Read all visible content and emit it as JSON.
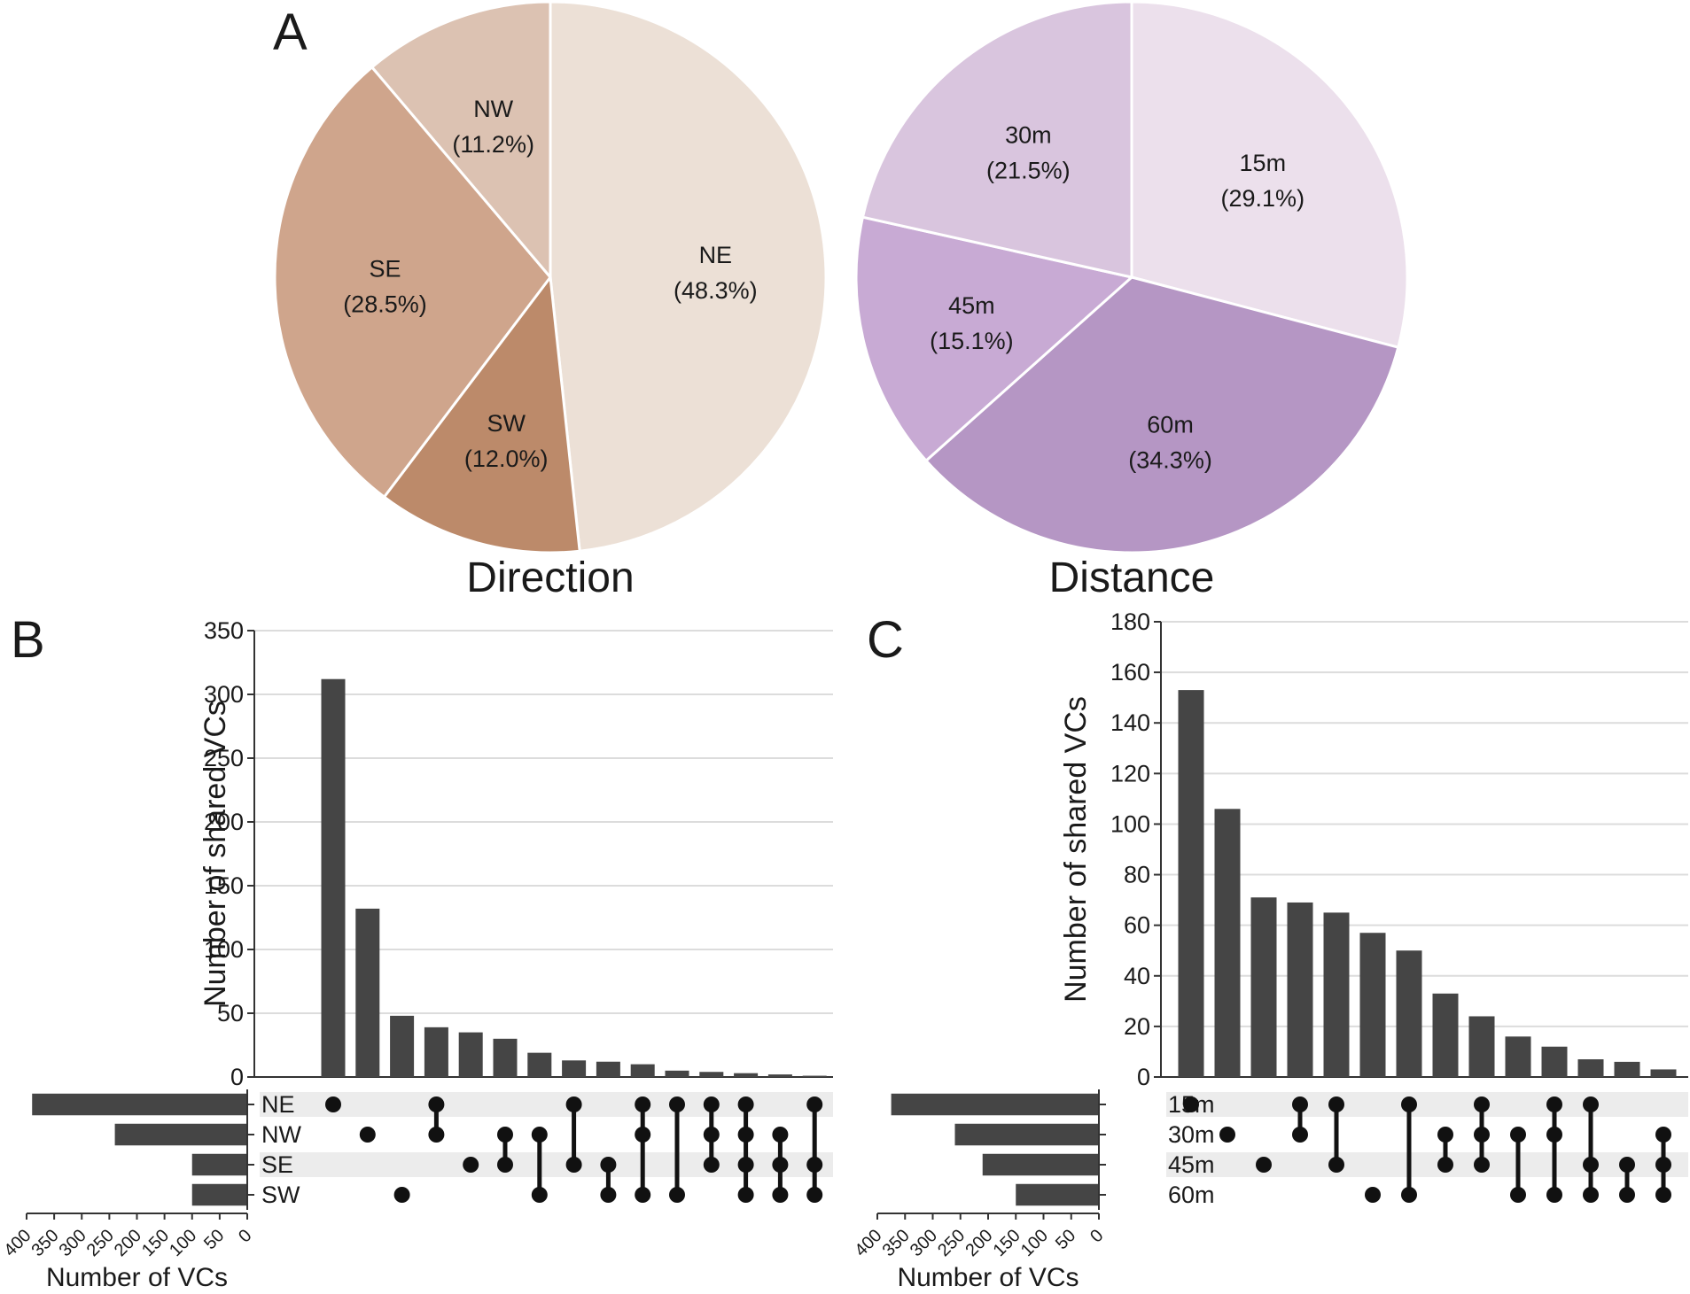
{
  "panels": {
    "a": "A",
    "b": "B",
    "c": "C"
  },
  "chart_data": [
    {
      "type": "pie",
      "title": "Direction",
      "slices": [
        {
          "label": "NE",
          "pct": "(48.3%)",
          "value": 48.3,
          "color": "#ece0d6"
        },
        {
          "label": "SW",
          "pct": "(12.0%)",
          "value": 12.0,
          "color": "#bc8a6a"
        },
        {
          "label": "SE",
          "pct": "(28.5%)",
          "value": 28.5,
          "color": "#cfa58c"
        },
        {
          "label": "NW",
          "pct": "(11.2%)",
          "value": 11.2,
          "color": "#dcc2b2"
        }
      ]
    },
    {
      "type": "pie",
      "title": "Distance",
      "slices": [
        {
          "label": "15m",
          "pct": "(29.1%)",
          "value": 29.1,
          "color": "#ece0ec"
        },
        {
          "label": "60m",
          "pct": "(34.3%)",
          "value": 34.3,
          "color": "#b596c4"
        },
        {
          "label": "45m",
          "pct": "(15.1%)",
          "value": 15.1,
          "color": "#c8aad4"
        },
        {
          "label": "30m",
          "pct": "(21.5%)",
          "value": 21.5,
          "color": "#d9c5de"
        }
      ]
    },
    {
      "type": "bar",
      "subtype": "upset",
      "ylabel": "Number of shared VCs",
      "xlabel": "Number of VCs",
      "ylim": [
        0,
        350
      ],
      "yticks": [
        0,
        50,
        100,
        150,
        200,
        250,
        300,
        350
      ],
      "sets": [
        "NE",
        "NW",
        "SE",
        "SW"
      ],
      "set_sizes": [
        390,
        240,
        100,
        100
      ],
      "set_size_lim": [
        0,
        400
      ],
      "set_size_ticks": [
        400,
        350,
        300,
        250,
        200,
        150,
        100,
        50,
        0
      ],
      "intersections": [
        {
          "sets": [
            0
          ],
          "value": 312
        },
        {
          "sets": [
            1
          ],
          "value": 132
        },
        {
          "sets": [
            3
          ],
          "value": 48
        },
        {
          "sets": [
            0,
            1
          ],
          "value": 39
        },
        {
          "sets": [
            2
          ],
          "value": 35
        },
        {
          "sets": [
            1,
            2
          ],
          "value": 30
        },
        {
          "sets": [
            1,
            3
          ],
          "value": 19
        },
        {
          "sets": [
            0,
            2
          ],
          "value": 13
        },
        {
          "sets": [
            2,
            3
          ],
          "value": 12
        },
        {
          "sets": [
            0,
            1,
            3
          ],
          "value": 10
        },
        {
          "sets": [
            0,
            3
          ],
          "value": 5
        },
        {
          "sets": [
            0,
            1,
            2
          ],
          "value": 4
        },
        {
          "sets": [
            0,
            1,
            2,
            3
          ],
          "value": 3
        },
        {
          "sets": [
            1,
            2,
            3
          ],
          "value": 2
        },
        {
          "sets": [
            0,
            2,
            3
          ],
          "value": 1
        }
      ]
    },
    {
      "type": "bar",
      "subtype": "upset",
      "ylabel": "Number of shared VCs",
      "xlabel": "Number of VCs",
      "ylim": [
        0,
        180
      ],
      "yticks": [
        0,
        20,
        40,
        60,
        80,
        100,
        120,
        140,
        160,
        180
      ],
      "sets": [
        "15m",
        "30m",
        "45m",
        "60m"
      ],
      "set_sizes": [
        375,
        260,
        210,
        150
      ],
      "set_size_lim": [
        0,
        400
      ],
      "set_size_ticks": [
        400,
        350,
        300,
        250,
        200,
        150,
        100,
        50,
        0
      ],
      "intersections": [
        {
          "sets": [
            0
          ],
          "value": 153
        },
        {
          "sets": [
            1
          ],
          "value": 106
        },
        {
          "sets": [
            2
          ],
          "value": 71
        },
        {
          "sets": [
            0,
            1
          ],
          "value": 69
        },
        {
          "sets": [
            0,
            2
          ],
          "value": 65
        },
        {
          "sets": [
            3
          ],
          "value": 57
        },
        {
          "sets": [
            0,
            3
          ],
          "value": 50
        },
        {
          "sets": [
            1,
            2
          ],
          "value": 33
        },
        {
          "sets": [
            0,
            1,
            2
          ],
          "value": 24
        },
        {
          "sets": [
            1,
            3
          ],
          "value": 16
        },
        {
          "sets": [
            0,
            1,
            3
          ],
          "value": 12
        },
        {
          "sets": [
            0,
            2,
            3
          ],
          "value": 7
        },
        {
          "sets": [
            2,
            3
          ],
          "value": 6
        },
        {
          "sets": [
            1,
            2,
            3
          ],
          "value": 3
        }
      ]
    }
  ]
}
